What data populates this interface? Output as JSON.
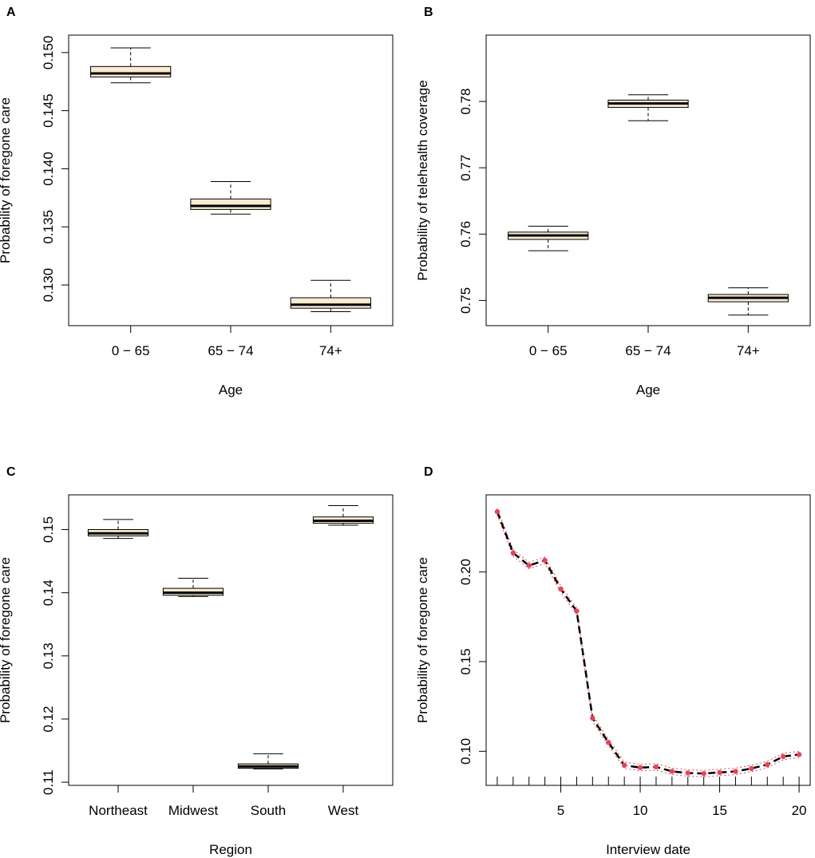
{
  "chart_data": [
    {
      "panel": "A",
      "type": "boxplot",
      "categories": [
        "0 − 65",
        "65 − 74",
        "74+"
      ],
      "boxes": [
        {
          "min": 0.1474,
          "q1": 0.1479,
          "median": 0.1482,
          "q3": 0.1488,
          "max": 0.1504
        },
        {
          "min": 0.1361,
          "q1": 0.1365,
          "median": 0.1368,
          "q3": 0.1374,
          "max": 0.1389
        },
        {
          "min": 0.1277,
          "q1": 0.128,
          "median": 0.1283,
          "q3": 0.1289,
          "max": 0.1304
        }
      ],
      "xlabel": "Age",
      "ylabel": "Probability of foregone care",
      "yticks": [
        0.13,
        0.135,
        0.14,
        0.145,
        0.15
      ],
      "ytick_labels": [
        "0.130",
        "0.135",
        "0.140",
        "0.145",
        "0.150"
      ],
      "ylim": [
        0.1265,
        0.1515
      ]
    },
    {
      "panel": "B",
      "type": "boxplot",
      "categories": [
        "0 − 65",
        "65 − 74",
        "74+"
      ],
      "boxes": [
        {
          "min": 0.7575,
          "q1": 0.7592,
          "median": 0.7598,
          "q3": 0.7603,
          "max": 0.7612
        },
        {
          "min": 0.7771,
          "q1": 0.7791,
          "median": 0.7797,
          "q3": 0.7802,
          "max": 0.781
        },
        {
          "min": 0.7478,
          "q1": 0.7498,
          "median": 0.7504,
          "q3": 0.7509,
          "max": 0.7519
        }
      ],
      "xlabel": "Age",
      "ylabel": "Probability of telehealth coverage",
      "yticks": [
        0.75,
        0.76,
        0.77,
        0.78
      ],
      "ytick_labels": [
        "0.75",
        "0.76",
        "0.77",
        "0.78"
      ],
      "ylim": [
        0.7462,
        0.79
      ]
    },
    {
      "panel": "C",
      "type": "boxplot",
      "categories": [
        "Northeast",
        "Midwest",
        "South",
        "West"
      ],
      "boxes": [
        {
          "min": 0.1486,
          "q1": 0.149,
          "median": 0.1494,
          "q3": 0.15,
          "max": 0.1516
        },
        {
          "min": 0.1394,
          "q1": 0.1396,
          "median": 0.14,
          "q3": 0.1407,
          "max": 0.1423
        },
        {
          "min": 0.1121,
          "q1": 0.1122,
          "median": 0.1125,
          "q3": 0.1129,
          "max": 0.1145
        },
        {
          "min": 0.1507,
          "q1": 0.151,
          "median": 0.1514,
          "q3": 0.152,
          "max": 0.1538
        }
      ],
      "xlabel": "Region",
      "ylabel": "Probability of foregone care",
      "yticks": [
        0.11,
        0.12,
        0.13,
        0.14,
        0.15
      ],
      "ytick_labels": [
        "0.11",
        "0.12",
        "0.13",
        "0.14",
        "0.15"
      ],
      "ylim": [
        0.1095,
        0.1555
      ]
    },
    {
      "panel": "D",
      "type": "line",
      "x": [
        1,
        2,
        3,
        4,
        5,
        6,
        7,
        8,
        9,
        10,
        11,
        12,
        13,
        14,
        15,
        16,
        17,
        18,
        19,
        20
      ],
      "values": [
        0.2336,
        0.2106,
        0.2036,
        0.2065,
        0.1905,
        0.1782,
        0.1185,
        0.1049,
        0.0922,
        0.0909,
        0.0913,
        0.0888,
        0.0879,
        0.0876,
        0.0882,
        0.0888,
        0.0904,
        0.0926,
        0.0971,
        0.0982
      ],
      "xlabel": "Interview date",
      "ylabel": "Probability of foregone care",
      "xticks": [
        5,
        10,
        15,
        20
      ],
      "xtick_labels": [
        "5",
        "10",
        "15",
        "20"
      ],
      "yticks": [
        0.1,
        0.15,
        0.2
      ],
      "ytick_labels": [
        "0.10",
        "0.15",
        "0.20"
      ],
      "xlim": [
        0.3,
        20.7
      ],
      "ylim": [
        0.081,
        0.243
      ],
      "rug": true,
      "line_color": "#000000",
      "point_color": "#e8435a",
      "band_color": "#e8435a"
    }
  ],
  "colors": {
    "box_fill": "#faebd2",
    "axis": "#000000"
  }
}
